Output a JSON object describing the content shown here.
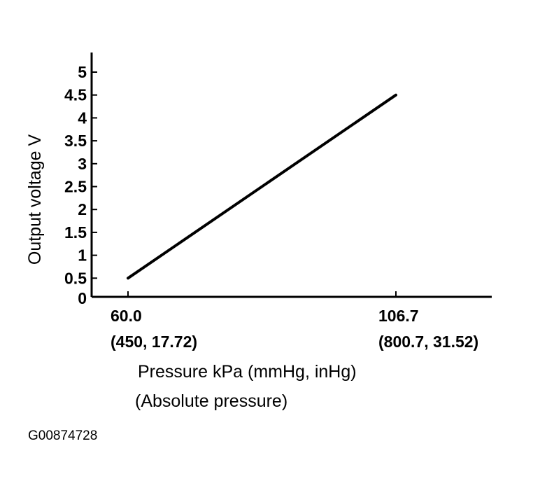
{
  "chart_data": {
    "type": "line",
    "ylabel": "Output voltage V",
    "xlabel": [
      "Pressure kPa (mmHg, inHg)",
      "(Absolute pressure)"
    ],
    "yticks": [
      "0",
      "0.5",
      "1",
      "1.5",
      "2",
      "2.5",
      "3",
      "3.5",
      "4",
      "4.5",
      "5"
    ],
    "xticks": [
      {
        "value": 60.0,
        "label": "60.0",
        "sublabel": "(450, 17.72)"
      },
      {
        "value": 106.7,
        "label": "106.7",
        "sublabel": "(800.7, 31.52)"
      }
    ],
    "ylim": [
      0,
      5.5
    ],
    "series": [
      {
        "x": [
          60.0,
          106.7
        ],
        "y": [
          0.5,
          4.5
        ]
      }
    ],
    "grid": false,
    "line_color": "#000000"
  },
  "figure_id": "G00874728"
}
